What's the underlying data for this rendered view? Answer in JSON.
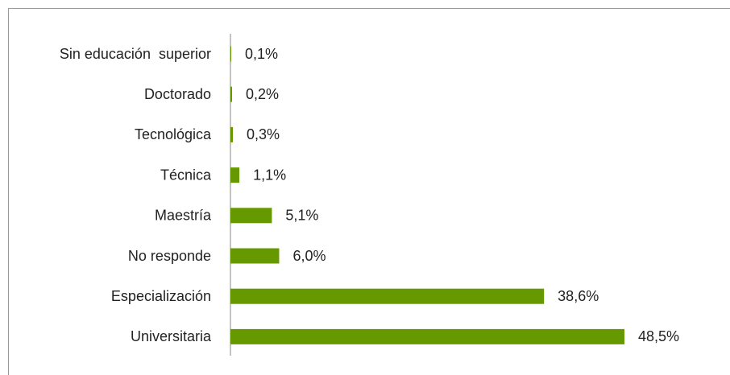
{
  "chart_data": {
    "type": "barh",
    "categories": [
      "Sin educación  superior",
      "Doctorado",
      "Tecnológica",
      "Técnica",
      "Maestría",
      "No responde",
      "Especialización",
      "Universitaria"
    ],
    "values": [
      0.1,
      0.2,
      0.3,
      1.1,
      5.1,
      6.0,
      38.6,
      48.5
    ],
    "value_labels": [
      "0,1%",
      "0,2%",
      "0,3%",
      "1,1%",
      "5,1%",
      "6,0%",
      "38,6%",
      "48,5%"
    ],
    "color": "#669900"
  }
}
